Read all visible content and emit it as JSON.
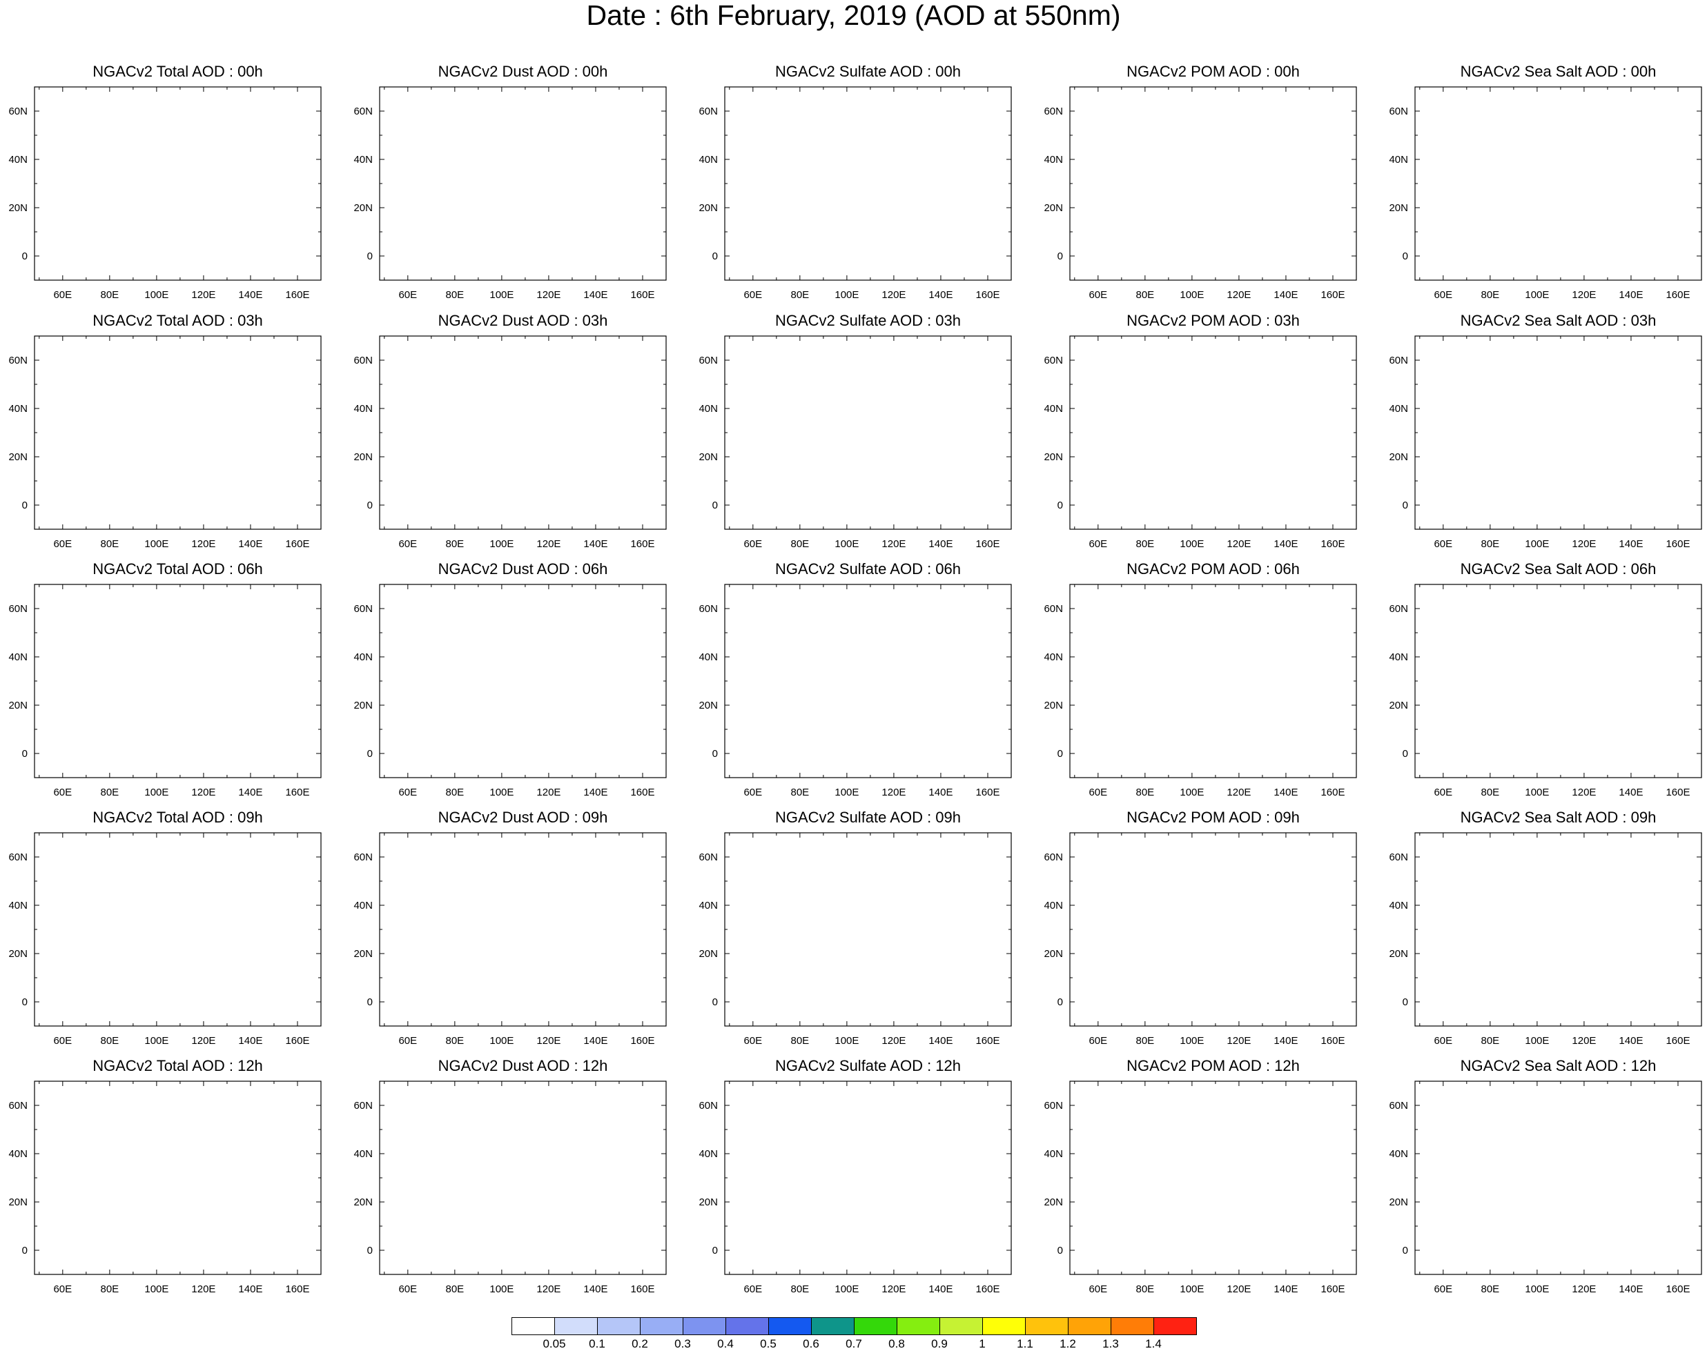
{
  "title": "Date : 6th February, 2019 (AOD at 550nm)",
  "panels": [
    [
      "NGACv2 Total AOD : 00h",
      "NGACv2 Dust AOD : 00h",
      "NGACv2 Sulfate AOD : 00h",
      "NGACv2 POM AOD : 00h",
      "NGACv2 Sea Salt AOD : 00h"
    ],
    [
      "NGACv2 Total AOD : 03h",
      "NGACv2 Dust AOD : 03h",
      "NGACv2 Sulfate AOD : 03h",
      "NGACv2 POM AOD : 03h",
      "NGACv2 Sea Salt AOD : 03h"
    ],
    [
      "NGACv2 Total AOD : 06h",
      "NGACv2 Dust AOD : 06h",
      "NGACv2 Sulfate AOD : 06h",
      "NGACv2 POM AOD : 06h",
      "NGACv2 Sea Salt AOD : 06h"
    ],
    [
      "NGACv2 Total AOD : 09h",
      "NGACv2 Dust AOD : 09h",
      "NGACv2 Sulfate AOD : 09h",
      "NGACv2 POM AOD : 09h",
      "NGACv2 Sea Salt  AOD : 09h"
    ],
    [
      "NGACv2 Total AOD  : 12h",
      "NGACv2 Dust AOD : 12h",
      "NGACv2 Sulfate AOD : 12h",
      "NGACv2 POM  AOD : 12h",
      "NGACv2 Sea Salt  AOD : 12h"
    ]
  ],
  "lon_ticks": [
    "60E",
    "80E",
    "100E",
    "120E",
    "140E",
    "160E"
  ],
  "lat_ticks": [
    "60N",
    "40N",
    "20N",
    "0"
  ],
  "colorbar": {
    "labels": [
      "0.05",
      "0.1",
      "0.2",
      "0.3",
      "0.4",
      "0.5",
      "0.6",
      "0.7",
      "0.8",
      "0.9",
      "1",
      "1.1",
      "1.2",
      "1.3",
      "1.4"
    ],
    "colors": [
      "#ffffff",
      "#d2ddfb",
      "#b5c6f8",
      "#98aef5",
      "#7d93f0",
      "#6473ea",
      "#1459f0",
      "#0e958a",
      "#34d80a",
      "#85ee10",
      "#c6f233",
      "#ffff07",
      "#ffc20c",
      "#ffa307",
      "#ff7d07",
      "#ff2212"
    ]
  }
}
